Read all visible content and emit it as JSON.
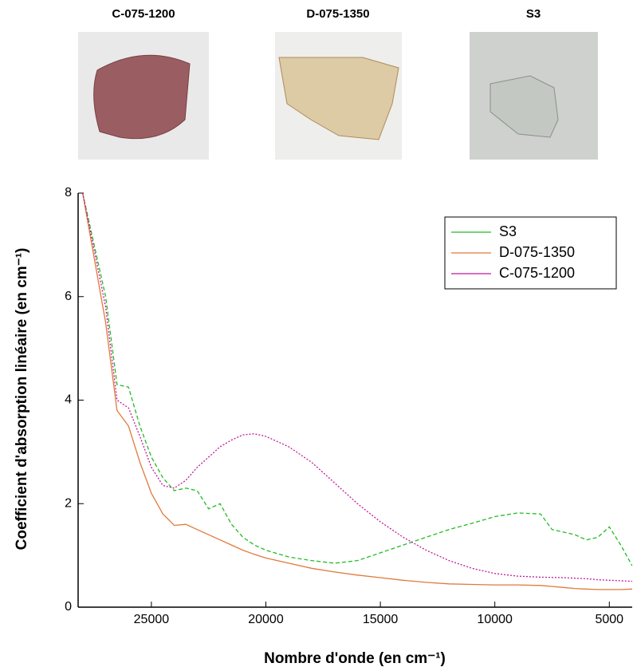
{
  "photo_labels": [
    "C-075-1200",
    "D-075-1350",
    "S3"
  ],
  "chart_data": {
    "type": "line",
    "xlabel": "Nombre d'onde (en cm⁻¹)",
    "ylabel": "Coefficient d'absorption linéaire (en cm⁻¹)",
    "x": [
      28000,
      27000,
      26500,
      26000,
      25500,
      25000,
      24500,
      24000,
      23500,
      23000,
      22500,
      22000,
      21500,
      21000,
      20500,
      20000,
      19000,
      18000,
      17000,
      16000,
      15000,
      14000,
      13000,
      12000,
      11000,
      10000,
      9000,
      8000,
      7500,
      7000,
      6500,
      6000,
      5500,
      5000,
      4500,
      4000
    ],
    "series": [
      {
        "name": "S3",
        "color": "#22bb22",
        "dash": "5,3",
        "values": [
          8,
          6,
          4.3,
          4.25,
          3.5,
          2.9,
          2.5,
          2.25,
          2.3,
          2.25,
          1.9,
          2.0,
          1.6,
          1.35,
          1.2,
          1.1,
          0.97,
          0.9,
          0.85,
          0.9,
          1.05,
          1.2,
          1.35,
          1.5,
          1.62,
          1.75,
          1.82,
          1.8,
          1.5,
          1.45,
          1.4,
          1.3,
          1.35,
          1.55,
          1.2,
          0.8
        ]
      },
      {
        "name": "D-075-1350",
        "color": "#e07a3a",
        "dash": "none",
        "values": [
          8,
          5.5,
          3.8,
          3.5,
          2.8,
          2.2,
          1.8,
          1.58,
          1.6,
          1.5,
          1.4,
          1.3,
          1.2,
          1.1,
          1.02,
          0.95,
          0.85,
          0.75,
          0.68,
          0.62,
          0.57,
          0.52,
          0.48,
          0.45,
          0.44,
          0.43,
          0.43,
          0.42,
          0.4,
          0.38,
          0.36,
          0.35,
          0.34,
          0.34,
          0.34,
          0.35
        ]
      },
      {
        "name": "C-075-1200",
        "color": "#c0199a",
        "dash": "2,2",
        "values": [
          8,
          5.8,
          4.0,
          3.85,
          3.3,
          2.7,
          2.35,
          2.3,
          2.45,
          2.7,
          2.9,
          3.1,
          3.23,
          3.33,
          3.35,
          3.3,
          3.1,
          2.8,
          2.4,
          2.0,
          1.65,
          1.35,
          1.1,
          0.9,
          0.75,
          0.65,
          0.6,
          0.58,
          0.575,
          0.57,
          0.56,
          0.55,
          0.53,
          0.52,
          0.51,
          0.5
        ]
      }
    ],
    "xlim": [
      28200,
      4000
    ],
    "ylim": [
      0,
      8
    ],
    "xticks": [
      25000,
      20000,
      15000,
      10000,
      5000
    ],
    "yticks": [
      0,
      2,
      4,
      6,
      8
    ],
    "legend": "upper right"
  }
}
